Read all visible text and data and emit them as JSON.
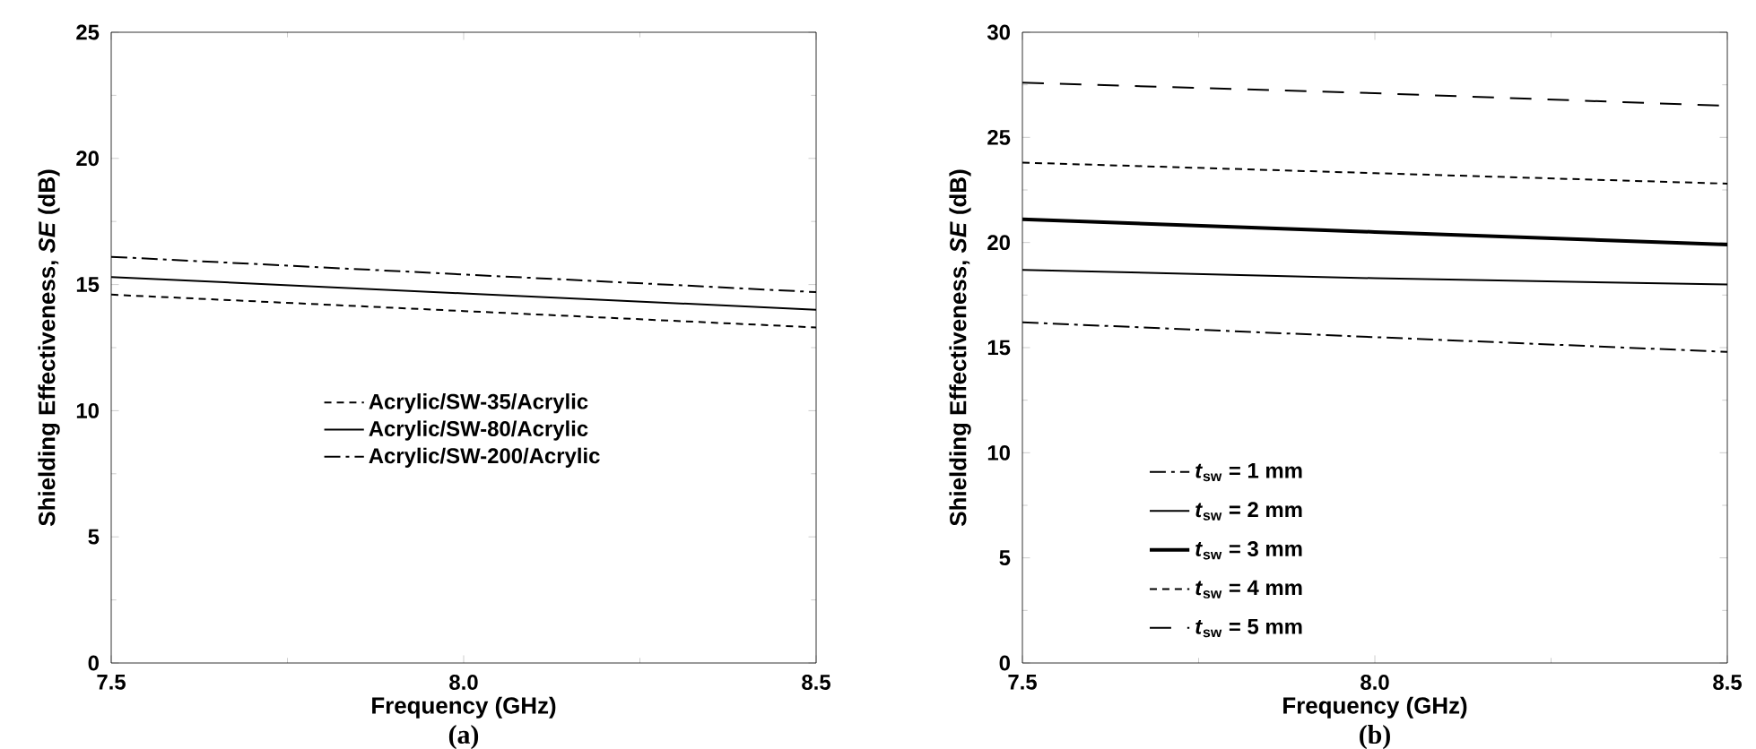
{
  "chart_data": [
    {
      "type": "line",
      "title": "(a)",
      "xlabel": "Frequency (GHz)",
      "ylabel": "Shielding Effectiveness, *SE* (dB)",
      "x": [
        7.5,
        8.0,
        8.5
      ],
      "xlim": [
        7.5,
        8.5
      ],
      "ylim": [
        0,
        25
      ],
      "xticks": [
        {
          "value": 7.5,
          "label": "7.5"
        },
        {
          "value": 8.0,
          "label": "8.0"
        },
        {
          "value": 8.5,
          "label": "8.5"
        }
      ],
      "yticks": [
        0,
        5,
        10,
        15,
        20,
        25
      ],
      "legend": "center",
      "series": [
        {
          "name": "Acrylic/SW-35/Acrylic",
          "color": "#000000",
          "line_style": "dashed",
          "values": [
            14.6,
            13.95,
            13.3
          ]
        },
        {
          "name": "Acrylic/SW-80/Acrylic",
          "color": "#000000",
          "line_style": "solid",
          "values": [
            15.3,
            14.65,
            14.0
          ]
        },
        {
          "name": "Acrylic/SW-200/Acrylic",
          "color": "#000000",
          "line_style": "dashdot",
          "values": [
            16.1,
            15.4,
            14.7
          ]
        }
      ]
    },
    {
      "type": "line",
      "title": "(b)",
      "xlabel": "Frequency (GHz)",
      "ylabel": "Shielding Effectiveness, *SE* (dB)",
      "x": [
        7.5,
        8.0,
        8.5
      ],
      "xlim": [
        7.5,
        8.5
      ],
      "ylim": [
        0,
        30
      ],
      "xticks": [
        {
          "value": 7.5,
          "label": "7.5"
        },
        {
          "value": 8.0,
          "label": "8.0"
        },
        {
          "value": 8.5,
          "label": "8.5"
        }
      ],
      "yticks": [
        0,
        5,
        10,
        15,
        20,
        25,
        30
      ],
      "legend": "bottom left",
      "series": [
        {
          "name": "*t*$_{sw}$ = 1 mm",
          "color": "#000000",
          "line_style": "dashdot",
          "values": [
            16.2,
            15.5,
            14.8
          ]
        },
        {
          "name": "*t*$_{sw}$ = 2 mm",
          "color": "#000000",
          "line_style": "solid",
          "values": [
            18.7,
            18.3,
            18.0
          ]
        },
        {
          "name": "*t*$_{sw}$ = 3 mm",
          "color": "#000000",
          "line_style": "solid",
          "values": [
            21.1,
            20.5,
            19.9
          ]
        },
        {
          "name": "*t*$_{sw}$ = 4 mm",
          "color": "#000000",
          "line_style": "dashed",
          "values": [
            23.8,
            23.3,
            22.8
          ]
        },
        {
          "name": "*t*$_{sw}$ = 5 mm",
          "color": "#000000",
          "line_style": "long dashed",
          "values": [
            27.6,
            27.1,
            26.5
          ]
        }
      ]
    }
  ]
}
